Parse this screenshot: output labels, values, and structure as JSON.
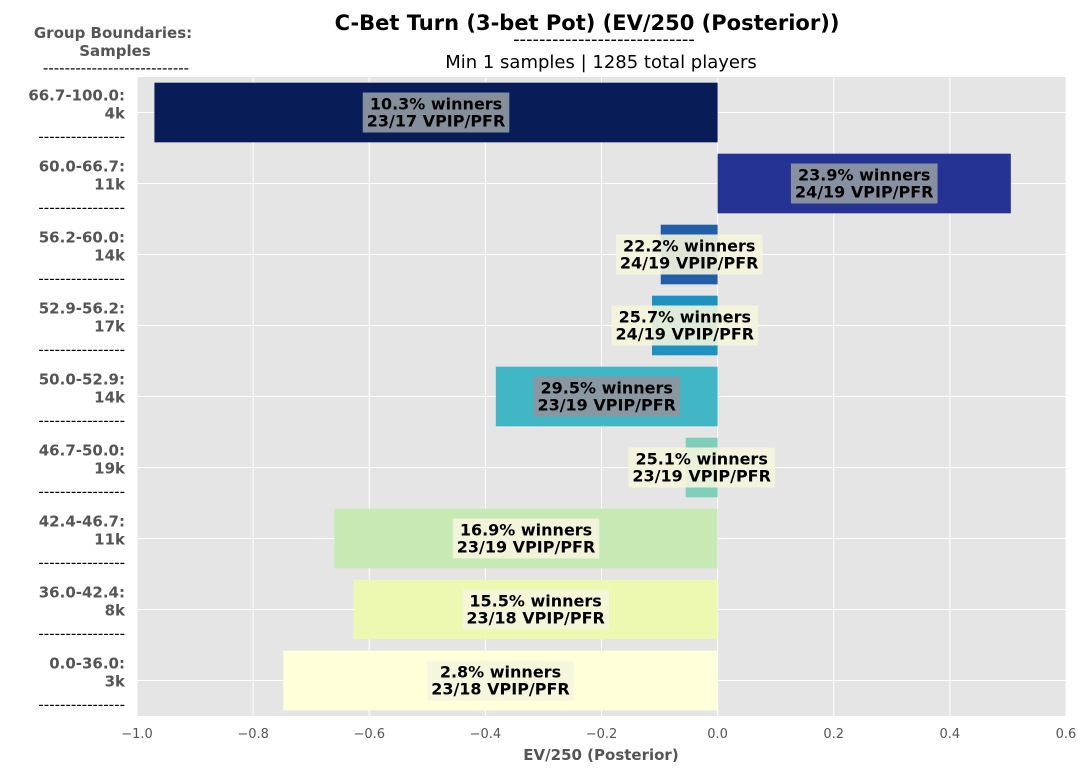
{
  "chart_data": {
    "type": "bar",
    "orientation": "horizontal",
    "title": "C-Bet Turn (3-bet Pot) (EV/250 (Posterior))",
    "title_underline": "----------------------------",
    "subtitle": "Min 1 samples | 1285 total players",
    "group_header": "Group Boundaries:\nSamples",
    "group_header_line1": "Group Boundaries:",
    "group_header_line2": "Samples",
    "header_separator": "---------------------------",
    "row_separator": "----------------",
    "xlabel": "EV/250 (Posterior)",
    "xlim": [
      -1.0,
      0.6
    ],
    "xticks": [
      "−1.0",
      "−0.8",
      "−0.6",
      "−0.4",
      "−0.2",
      "0.0",
      "0.2",
      "0.4",
      "0.6"
    ],
    "xtick_values": [
      -1.0,
      -0.8,
      -0.6,
      -0.4,
      -0.2,
      0.0,
      0.2,
      0.4,
      0.6
    ],
    "grid": true,
    "categories": [
      {
        "group": "66.7-100.0:",
        "samples": "4k",
        "value": -0.97,
        "winners": "10.3% winners",
        "vpip_pfr": "23/17 VPIP/PFR",
        "color": "#081d58"
      },
      {
        "group": "60.0-66.7:",
        "samples": "11k",
        "value": 0.505,
        "winners": "23.9% winners",
        "vpip_pfr": "24/19 VPIP/PFR",
        "color": "#253494"
      },
      {
        "group": "56.2-60.0:",
        "samples": "14k",
        "value": -0.098,
        "winners": "22.2% winners",
        "vpip_pfr": "24/19 VPIP/PFR",
        "color": "#225ea8"
      },
      {
        "group": "52.9-56.2:",
        "samples": "17k",
        "value": -0.113,
        "winners": "25.7% winners",
        "vpip_pfr": "24/19 VPIP/PFR",
        "color": "#1d91c0"
      },
      {
        "group": "50.0-52.9:",
        "samples": "14k",
        "value": -0.382,
        "winners": "29.5% winners",
        "vpip_pfr": "23/19 VPIP/PFR",
        "color": "#41b6c4"
      },
      {
        "group": "46.7-50.0:",
        "samples": "19k",
        "value": -0.055,
        "winners": "25.1% winners",
        "vpip_pfr": "23/19 VPIP/PFR",
        "color": "#7fcdbb"
      },
      {
        "group": "42.4-46.7:",
        "samples": "11k",
        "value": -0.66,
        "winners": "16.9% winners",
        "vpip_pfr": "23/19 VPIP/PFR",
        "color": "#c7e9b4"
      },
      {
        "group": "36.0-42.4:",
        "samples": "8k",
        "value": -0.627,
        "winners": "15.5% winners",
        "vpip_pfr": "23/18 VPIP/PFR",
        "color": "#edf8b1"
      },
      {
        "group": "0.0-36.0:",
        "samples": "3k",
        "value": -0.748,
        "winners": "2.8% winners",
        "vpip_pfr": "23/18 VPIP/PFR",
        "color": "#ffffd9"
      }
    ],
    "colors": {
      "plot_background": "#e5e5e5",
      "grid": "#ffffff",
      "label_box_dark": "#8c96a0",
      "label_box_light": "#f5f5dc"
    }
  }
}
